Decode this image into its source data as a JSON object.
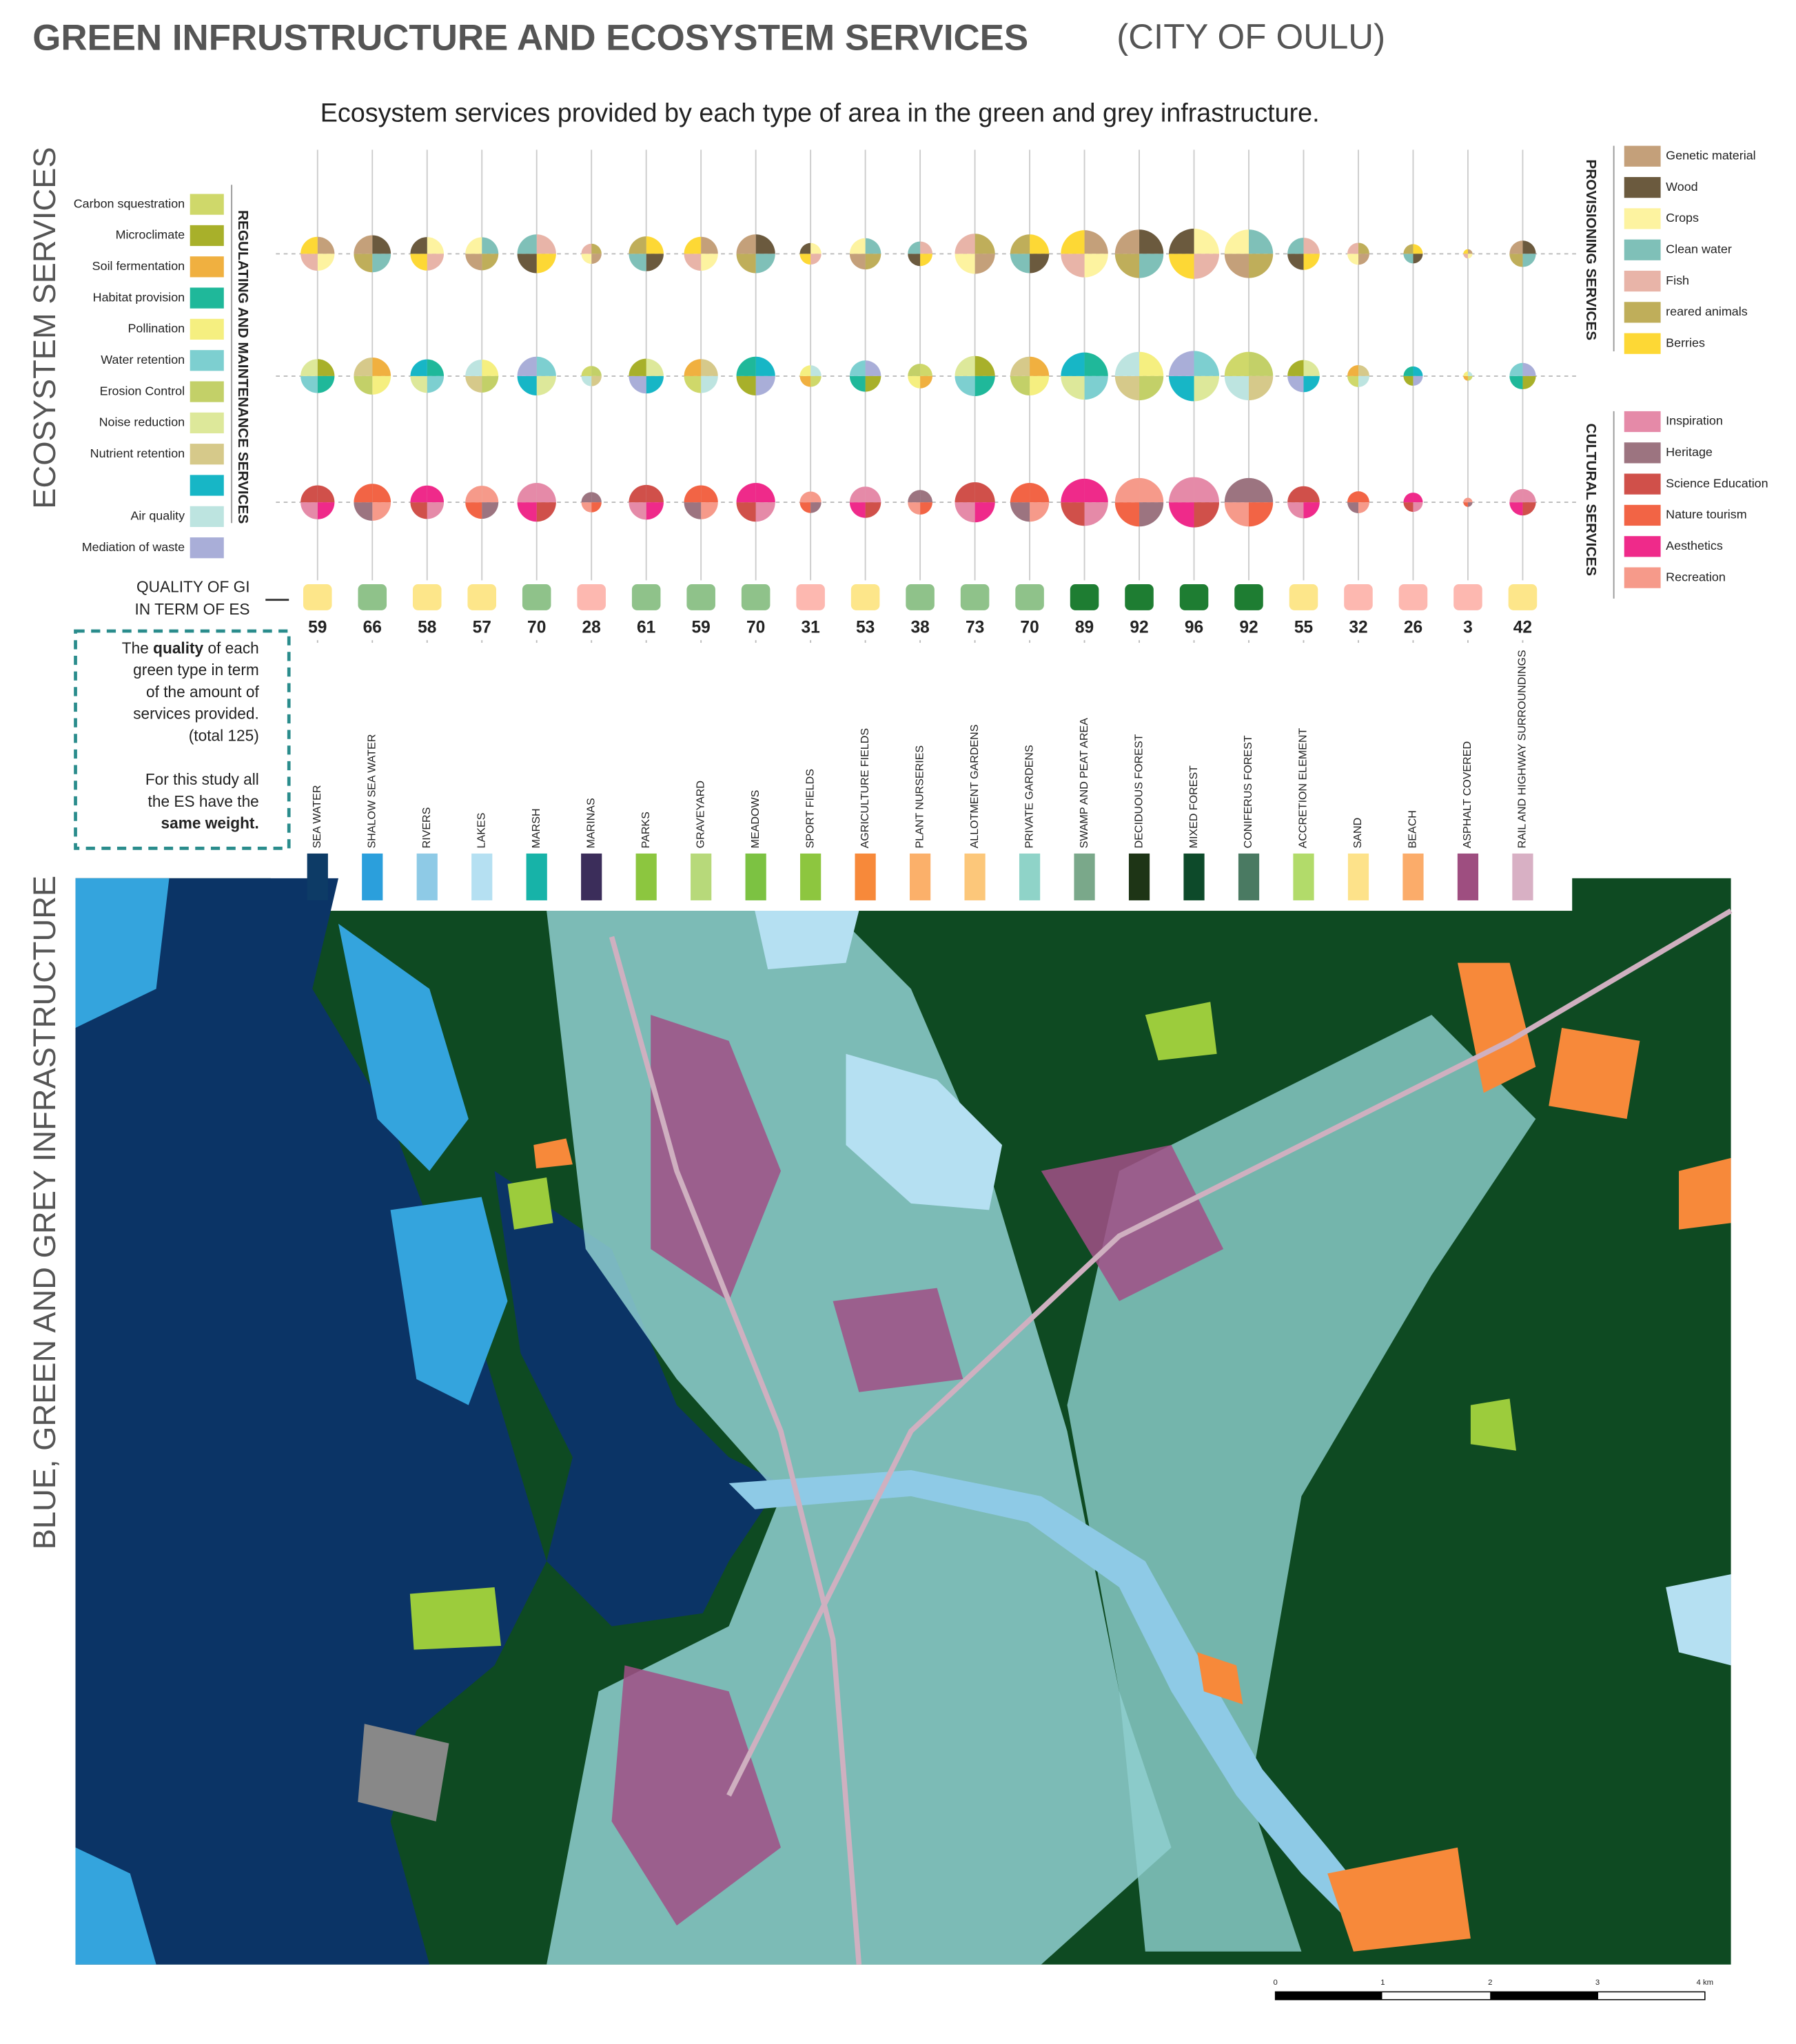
{
  "title": "GREEN INFRUSTRUCTURE AND ECOSYSTEM SERVICES",
  "title_suffix": "(CITY OF OULU)",
  "subtitle": "Ecosystem services provided by each type of area in the  green and grey infrastructure.",
  "side_labels": [
    "ECOSYSTEM SERVICES",
    "BLUE, GREEN AND GREY INFRASTRUCTURE"
  ],
  "regulating": {
    "title": "REGULATING AND MAINTENANCE SERVICES",
    "items": [
      {
        "name": "Carbon squestration",
        "color": "#cfd86a"
      },
      {
        "name": "Microclimate",
        "color": "#a8b02a"
      },
      {
        "name": "Soil fermentation",
        "color": "#f0b040"
      },
      {
        "name": "Habitat provision",
        "color": "#1fb89a"
      },
      {
        "name": "Pollination",
        "color": "#f5ef80"
      },
      {
        "name": "Water retention",
        "color": "#7dcfd0"
      },
      {
        "name": "Erosion Control",
        "color": "#c3d068"
      },
      {
        "name": "Noise reduction",
        "color": "#dde89a"
      },
      {
        "name": "Nutrient retention",
        "color": "#d6c98a"
      },
      {
        "color": "#17b6c6"
      },
      {
        "name": "Air quality",
        "color": "#bde4e0"
      },
      {
        "name": "Mediation of waste",
        "color": "#a9aed8"
      }
    ]
  },
  "provisioning": {
    "title": "PROVISIONING SERVICES",
    "items": [
      {
        "name": "Genetic material",
        "color": "#c4a07a"
      },
      {
        "name": "Wood",
        "color": "#6b5a3e"
      },
      {
        "name": "Crops",
        "color": "#fdf3a0"
      },
      {
        "name": "Clean water",
        "color": "#7fc0b8"
      },
      {
        "name": "Fish",
        "color": "#e8b4a8"
      },
      {
        "name": "reared animals",
        "color": "#bfae5a"
      },
      {
        "name": "Berries",
        "color": "#fdd835"
      }
    ]
  },
  "cultural": {
    "title": "CULTURAL SERVICES",
    "items": [
      {
        "name": "Inspiration",
        "color": "#e58aa8"
      },
      {
        "name": "Heritage",
        "color": "#9c7480"
      },
      {
        "name": "Science Education",
        "color": "#d0504a"
      },
      {
        "name": "Nature tourism",
        "color": "#f26445"
      },
      {
        "name": "Aesthetics",
        "color": "#ef2a8a"
      },
      {
        "name": "Recreation",
        "color": "#f69a8a"
      }
    ]
  },
  "quality_label": [
    "QUALITY OF GI",
    "IN TERM OF ES"
  ],
  "note": {
    "lines": [
      [
        {
          "text": "The "
        },
        {
          "text": "quality",
          "bold": true
        },
        {
          "text": " of each"
        }
      ],
      [
        {
          "text": "green type in term"
        }
      ],
      [
        {
          "text": "of the amount of"
        }
      ],
      [
        {
          "text": "services provided."
        }
      ],
      [
        {
          "text": "(total 125)"
        }
      ],
      [
        {
          "text": "For this study all"
        }
      ],
      [
        {
          "text": "the ES have the"
        }
      ],
      [
        {
          "text": "same weight.",
          "bold": true
        }
      ]
    ]
  },
  "areas": [
    {
      "name": "SEA WATER",
      "color": "#0d3b66",
      "quality": 59,
      "quality_color": "#fde68a"
    },
    {
      "name": "SHALOW SEA WATER",
      "color": "#2b9fdc",
      "quality": 66,
      "quality_color": "#8fc28a"
    },
    {
      "name": "RIVERS",
      "color": "#8ecae6",
      "quality": 58,
      "quality_color": "#fde68a"
    },
    {
      "name": "LAKES",
      "color": "#b5e0f2",
      "quality": 57,
      "quality_color": "#fde68a"
    },
    {
      "name": "MARSH",
      "color": "#17b3a8",
      "quality": 70,
      "quality_color": "#8fc28a"
    },
    {
      "name": "MARINAS",
      "color": "#3b2d5a",
      "quality": 28,
      "quality_color": "#fdb8b0"
    },
    {
      "name": "PARKS",
      "color": "#8cc63f",
      "quality": 61,
      "quality_color": "#8fc28a"
    },
    {
      "name": "GRAVEYARD",
      "color": "#b7d97a",
      "quality": 59,
      "quality_color": "#8fc28a"
    },
    {
      "name": "MEADOWS",
      "color": "#7cc242",
      "quality": 70,
      "quality_color": "#8fc28a"
    },
    {
      "name": "SPORT FIELDS",
      "color": "#8dc63f",
      "quality": 31,
      "quality_color": "#fdb8b0"
    },
    {
      "name": "AGRICULTURE FIELDS",
      "color": "#f7893a",
      "quality": 53,
      "quality_color": "#fde68a"
    },
    {
      "name": "PLANT NURSERIES",
      "color": "#fbb06a",
      "quality": 38,
      "quality_color": "#8fc28a"
    },
    {
      "name": "ALLOTMENT GARDENS",
      "color": "#fcc77a",
      "quality": 73,
      "quality_color": "#8fc28a"
    },
    {
      "name": "PRIVATE GARDENS",
      "color": "#8fd3c8",
      "quality": 70,
      "quality_color": "#8fc28a"
    },
    {
      "name": "SWAMP AND PEAT AREA",
      "color": "#7aa88a",
      "quality": 89,
      "quality_color": "#1e7d32"
    },
    {
      "name": "DECIDUOUS FOREST",
      "color": "#1e3516",
      "quality": 92,
      "quality_color": "#1e7d32"
    },
    {
      "name": "MIXED FOREST",
      "color": "#0d4a2a",
      "quality": 96,
      "quality_color": "#1e7d32"
    },
    {
      "name": "CONIFERUS FOREST",
      "color": "#4a7a62",
      "quality": 92,
      "quality_color": "#1e7d32"
    },
    {
      "name": "ACCRETION ELEMENT",
      "color": "#b2db6a",
      "quality": 55,
      "quality_color": "#fde68a"
    },
    {
      "name": "SAND",
      "color": "#fde28a",
      "quality": 32,
      "quality_color": "#fdb8b0"
    },
    {
      "name": "BEACH",
      "color": "#fbac6a",
      "quality": 26,
      "quality_color": "#fdb8b0"
    },
    {
      "name": "ASPHALT COVERED",
      "color": "#9e4e80",
      "quality": 3,
      "quality_color": "#fdb8b0"
    },
    {
      "name": "RAIL AND HIGHWAY SURROUNDINGS",
      "color": "#d8b0c4",
      "quality": 42,
      "quality_color": "#fde68a"
    }
  ],
  "scale_bar": [
    "0",
    "1",
    "2",
    "3",
    "4 km"
  ]
}
